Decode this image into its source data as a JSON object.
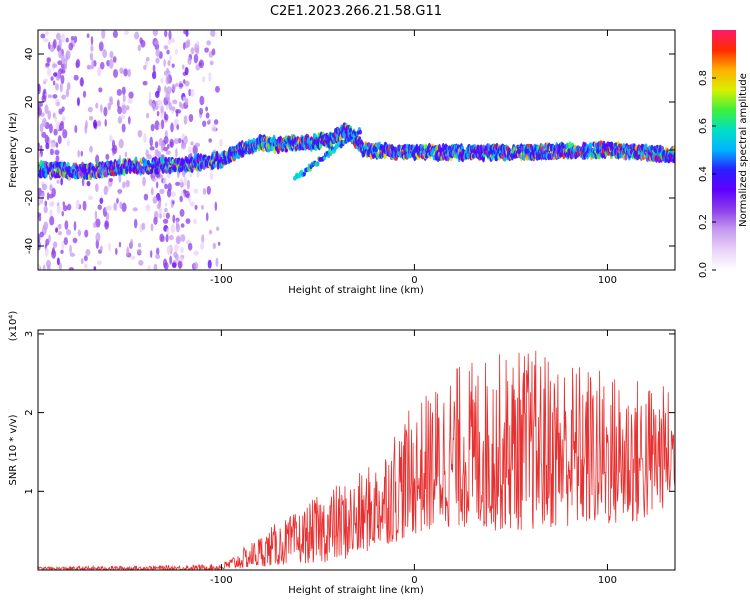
{
  "title": "C2E1.2023.266.21.58.G11",
  "chart_data": [
    {
      "type": "heatmap",
      "xlabel": "Height of straight line (km)",
      "ylabel": "Frequency (Hz)",
      "xlim": [
        -195,
        135
      ],
      "ylim": [
        -50,
        50
      ],
      "x_ticks": [
        -100,
        0,
        100
      ],
      "y_ticks": [
        -40,
        -20,
        0,
        20,
        40
      ],
      "colorbar": {
        "label": "Normalized spectral amplitude",
        "range": [
          0,
          1
        ],
        "ticks": [
          0.0,
          0.2,
          0.4,
          0.6,
          0.8
        ],
        "colormap": [
          "#ffffff",
          "#ead2f8",
          "#c59af0",
          "#8d3fe8",
          "#5f00ff",
          "#2a1fff",
          "#00b3ff",
          "#00e0c4",
          "#3ef03a",
          "#d8f000",
          "#ffb000",
          "#ff2a00",
          "#ff1a6a"
        ]
      },
      "ridge": [
        {
          "x": -195,
          "f": -8
        },
        {
          "x": -170,
          "f": -9
        },
        {
          "x": -150,
          "f": -7
        },
        {
          "x": -120,
          "f": -6
        },
        {
          "x": -100,
          "f": -4
        },
        {
          "x": -90,
          "f": 0
        },
        {
          "x": -80,
          "f": 3
        },
        {
          "x": -70,
          "f": 2
        },
        {
          "x": -60,
          "f": 3
        },
        {
          "x": -45,
          "f": 4
        },
        {
          "x": -35,
          "f": 8
        },
        {
          "x": -26,
          "f": 0
        },
        {
          "x": 0,
          "f": -1
        },
        {
          "x": 50,
          "f": -1
        },
        {
          "x": 100,
          "f": 0
        },
        {
          "x": 135,
          "f": -2
        }
      ]
    },
    {
      "type": "line",
      "xlabel": "Height of straight line (km)",
      "ylabel": "SNR (10 * v/v)",
      "y_scale_label": "(x10⁴)",
      "xlim": [
        -195,
        135
      ],
      "ylim": [
        0,
        3.05
      ],
      "x_ticks": [
        -100,
        0,
        100
      ],
      "y_ticks": [
        1,
        2,
        3
      ],
      "color": "#e83030",
      "envelope": [
        {
          "x": -195,
          "min": 0.0,
          "max": 0.04
        },
        {
          "x": -120,
          "min": 0.0,
          "max": 0.06
        },
        {
          "x": -100,
          "min": 0.0,
          "max": 0.08
        },
        {
          "x": -90,
          "min": 0.02,
          "max": 0.25
        },
        {
          "x": -75,
          "min": 0.05,
          "max": 0.55
        },
        {
          "x": -60,
          "min": 0.08,
          "max": 0.75
        },
        {
          "x": -45,
          "min": 0.1,
          "max": 1.05
        },
        {
          "x": -30,
          "min": 0.15,
          "max": 1.2
        },
        {
          "x": -20,
          "min": 0.3,
          "max": 1.4
        },
        {
          "x": -10,
          "min": 0.35,
          "max": 1.85
        },
        {
          "x": 0,
          "min": 0.45,
          "max": 2.1
        },
        {
          "x": 20,
          "min": 0.55,
          "max": 2.6
        },
        {
          "x": 40,
          "min": 0.5,
          "max": 2.75
        },
        {
          "x": 60,
          "min": 0.5,
          "max": 2.85
        },
        {
          "x": 80,
          "min": 0.55,
          "max": 2.7
        },
        {
          "x": 100,
          "min": 0.55,
          "max": 2.55
        },
        {
          "x": 120,
          "min": 0.6,
          "max": 2.45
        },
        {
          "x": 135,
          "min": 0.9,
          "max": 2.3
        }
      ]
    }
  ]
}
